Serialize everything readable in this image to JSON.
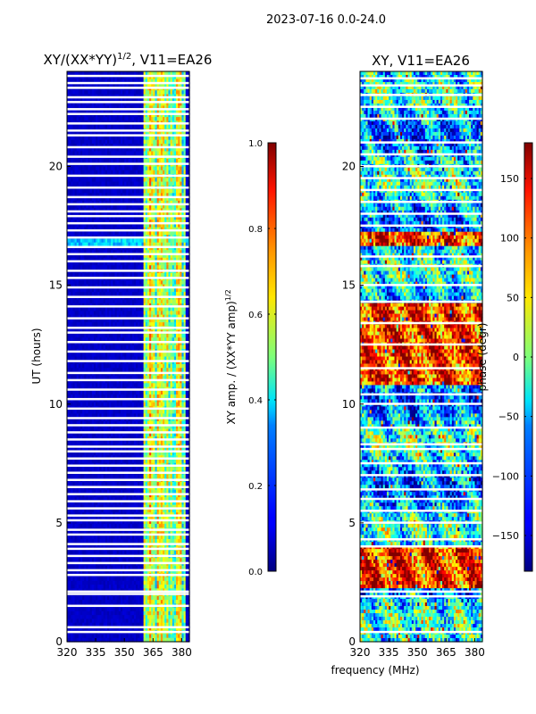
{
  "figure": {
    "suptitle": "2023-07-16 0.0-24.0",
    "xlabel_shared": "frequency (MHz)"
  },
  "chart_data": [
    {
      "type": "heatmap",
      "title": "XY/(XX*YY)^{1/2}, V11=EA26",
      "title_main": "XY/(XX*YY)",
      "title_sup": "1/2",
      "title_tail": ", V11=EA26",
      "xlabel": "",
      "ylabel": "UT (hours)",
      "xlim": [
        320,
        384
      ],
      "ylim": [
        0,
        24
      ],
      "xticks": [
        320,
        335,
        350,
        365,
        380
      ],
      "yticks": [
        0,
        5,
        10,
        15,
        20
      ],
      "colormap": "jet",
      "colorbar": {
        "label": "XY amp. / (XX*YY amp)^{1/2}",
        "label_main": "XY amp. / (XX*YY amp)",
        "label_sup": "1/2",
        "range": [
          0.0,
          1.0
        ],
        "ticks": [
          0.0,
          0.2,
          0.4,
          0.6,
          0.8,
          1.0
        ],
        "tick_labels": [
          "0.0",
          "0.2",
          "0.4",
          "0.6",
          "0.8",
          "1.0"
        ]
      },
      "description_values": {
        "background_level": 0.05,
        "active_band_mhz": [
          360,
          382
        ],
        "active_band_level_range": [
          0.35,
          0.7
        ],
        "bright_row_ut": 16.8,
        "bright_row_level": 0.3
      },
      "gap_rows_ut": [
        0.4,
        0.6,
        1.5,
        2.0,
        2.1,
        2.8,
        3.0,
        3.3,
        3.6,
        3.9,
        4.1,
        4.5,
        4.7,
        5.1,
        5.3,
        5.6,
        5.9,
        6.2,
        6.5,
        6.8,
        7.1,
        7.4,
        7.7,
        8.0,
        8.2,
        8.5,
        8.8,
        9.1,
        9.4,
        9.8,
        10.2,
        10.6,
        11.0,
        11.3,
        11.8,
        12.2,
        12.6,
        13.0,
        13.2,
        13.6,
        14.1,
        14.5,
        14.9,
        15.3,
        15.6,
        16.0,
        16.3,
        16.6,
        17.0,
        17.3,
        17.6,
        17.9,
        18.1,
        18.4,
        18.7,
        19.1,
        19.6,
        20.1,
        20.4,
        20.8,
        21.3,
        21.5,
        21.8,
        22.2,
        22.4,
        22.7,
        22.9,
        23.3,
        23.5,
        23.8
      ]
    },
    {
      "type": "heatmap",
      "title": "XY, V11=EA26",
      "xlabel": "",
      "ylabel": "",
      "xlim": [
        320,
        384
      ],
      "ylim": [
        0,
        24
      ],
      "xticks": [
        320,
        335,
        350,
        365,
        380
      ],
      "yticks": [
        0,
        5,
        10,
        15,
        20
      ],
      "colormap": "jet",
      "colorbar": {
        "label": "phase (degr)",
        "range": [
          -180,
          180
        ],
        "ticks": [
          -150,
          -100,
          -50,
          0,
          50,
          100,
          150
        ],
        "tick_labels": [
          "−150",
          "−100",
          "−50",
          "0",
          "50",
          "100",
          "150"
        ]
      },
      "description_values": {
        "phase_warm_blocks_ut": [
          [
            2.2,
            4.0
          ],
          [
            10.8,
            14.2
          ],
          [
            16.6,
            17.2
          ]
        ],
        "phase_warm_level_deg": 120,
        "phase_cool_level_deg": -60
      },
      "gap_rows_ut": [
        0.4,
        1.9,
        2.1,
        4.0,
        4.3,
        5.0,
        5.5,
        6.0,
        6.4,
        7.0,
        7.5,
        8.1,
        8.3,
        9.0,
        10.0,
        10.4,
        11.5,
        12.5,
        13.4,
        14.3,
        15.0,
        15.8,
        16.2,
        17.5,
        18.0,
        18.5,
        19.0,
        19.5,
        20.0,
        20.5,
        21.0,
        22.0,
        22.5,
        23.0,
        23.4,
        23.7
      ]
    }
  ]
}
